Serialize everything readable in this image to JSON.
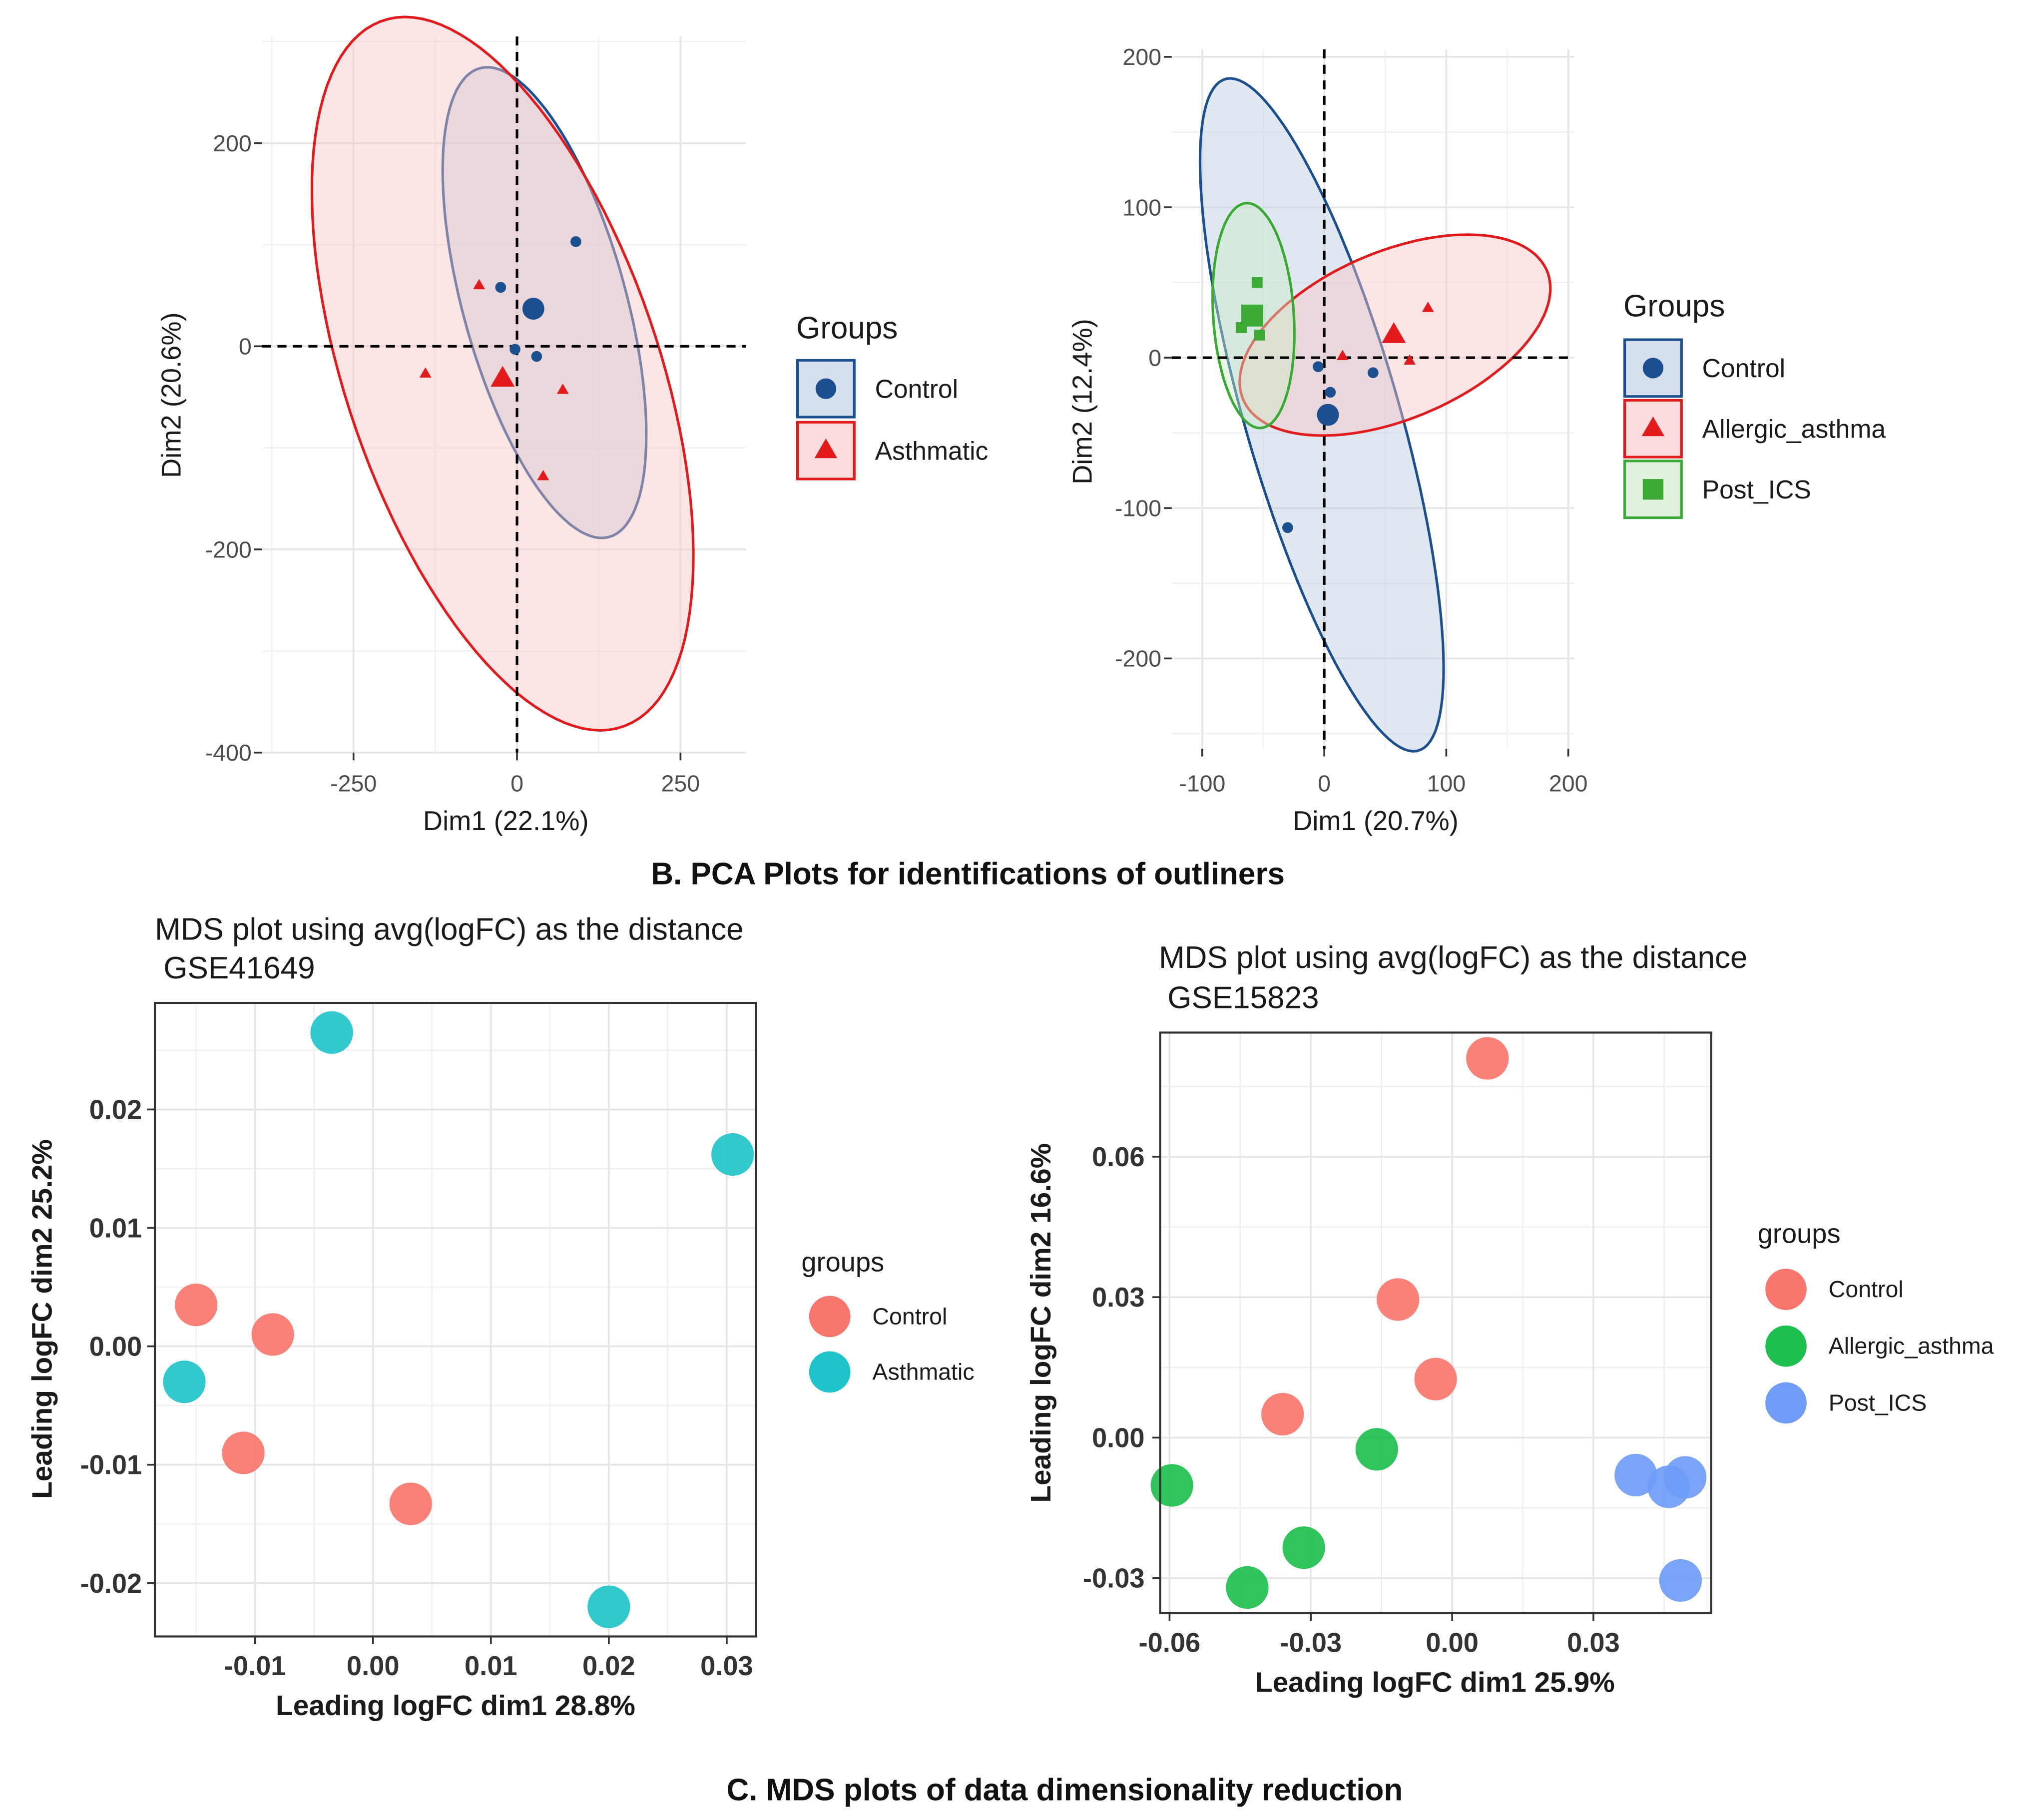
{
  "section_b_caption": "B. PCA Plots for identifications of outliners",
  "section_c_caption": "C. MDS plots of data dimensionality reduction",
  "colors": {
    "control_pca": "#1B4F8F",
    "asthma_pca": "#E31A1C",
    "post_ics_pca": "#3BAA35",
    "control_mds": "#F8766D",
    "asthmatic_mds": "#1FC3CA",
    "allergic_mds": "#1DBF4E",
    "post_ics_mds": "#6E9CF7",
    "grid": "#E6E6E6",
    "panel_border": "#333333"
  },
  "chart_data": [
    {
      "id": "pca1",
      "type": "scatter",
      "title": "",
      "xlabel": "Dim1 (22.1%)",
      "ylabel": "Dim2 (20.6%)",
      "xlim": [
        -390,
        350
      ],
      "ylim": [
        -400,
        305
      ],
      "xticks": [
        -250,
        0,
        250
      ],
      "yticks": [
        -400,
        -200,
        0,
        200
      ],
      "xtick_labels": [
        "-250",
        "0",
        "250"
      ],
      "ytick_labels": [
        "-400",
        "-200",
        "0",
        "200"
      ],
      "grid": true,
      "reference_lines": {
        "x": 0,
        "y": 0
      },
      "legend": {
        "title": "Groups",
        "position": "right",
        "entries": [
          "Control",
          "Asthmatic"
        ]
      },
      "series": [
        {
          "name": "Control",
          "shape": "circle",
          "color_key": "control_pca",
          "points": [
            [
              90,
              103
            ],
            [
              -25,
              58
            ],
            [
              -3,
              -3
            ],
            [
              30,
              -10
            ]
          ],
          "centroid": [
            25,
            37
          ],
          "ellipse": {
            "center": [
              42,
              43
            ],
            "rx": 253,
            "ry": 118,
            "angle": -63
          }
        },
        {
          "name": "Asthmatic",
          "shape": "triangle",
          "color_key": "asthma_pca",
          "points": [
            [
              -58,
              60
            ],
            [
              -140,
              -27
            ],
            [
              70,
              -43
            ],
            [
              40,
              -128
            ]
          ],
          "centroid": [
            -22,
            -32
          ],
          "ellipse": {
            "center": [
              -22,
              -27
            ],
            "rx": 400,
            "ry": 220,
            "angle": -55
          }
        }
      ]
    },
    {
      "id": "pca2",
      "type": "scatter",
      "title": "",
      "xlabel": "Dim1 (20.7%)",
      "ylabel": "Dim2 (12.4%)",
      "xlim": [
        -125,
        205
      ],
      "ylim": [
        -260,
        205
      ],
      "xticks": [
        -100,
        0,
        100,
        200
      ],
      "yticks": [
        -200,
        -100,
        0,
        100,
        200
      ],
      "xtick_labels": [
        "-100",
        "0",
        "100",
        "200"
      ],
      "ytick_labels": [
        "-200",
        "-100",
        "0",
        "100",
        "200"
      ],
      "grid": true,
      "reference_lines": {
        "x": 0,
        "y": 0
      },
      "legend": {
        "title": "Groups",
        "position": "right",
        "entries": [
          "Control",
          "Allergic_asthma",
          "Post_ICS"
        ]
      },
      "series": [
        {
          "name": "Control",
          "shape": "circle",
          "color_key": "control_pca",
          "points": [
            [
              -5,
              -6
            ],
            [
              5,
              -23
            ],
            [
              40,
              -10
            ],
            [
              -30,
              -113
            ]
          ],
          "centroid": [
            3,
            -38
          ],
          "ellipse": {
            "center": [
              -2,
              -38
            ],
            "rx": 237,
            "ry": 62,
            "angle": -70
          }
        },
        {
          "name": "Allergic_asthma",
          "shape": "triangle",
          "color_key": "asthma_pca",
          "points": [
            [
              15,
              1
            ],
            [
              70,
              -2
            ],
            [
              85,
              33
            ]
          ],
          "centroid": [
            57,
            15
          ],
          "ellipse": {
            "center": [
              58,
              15
            ],
            "rx": 132,
            "ry": 57,
            "angle": 17
          }
        },
        {
          "name": "Post_ICS",
          "shape": "square",
          "color_key": "post_ics_pca",
          "points": [
            [
              -55,
              50
            ],
            [
              -68,
              20
            ],
            [
              -53,
              15
            ]
          ],
          "centroid": [
            -59,
            28
          ],
          "ellipse": {
            "center": [
              -58,
              28
            ],
            "rx": 75,
            "ry": 33,
            "angle": -85
          }
        }
      ]
    },
    {
      "id": "mds1",
      "type": "scatter",
      "title": "MDS plot using avg(logFC) as the distance\n GSE41649",
      "xlabel": "Leading logFC dim1 28.8%",
      "ylabel": "Leading logFC dim2 25.2%",
      "xlim": [
        -0.0185,
        0.0325
      ],
      "ylim": [
        -0.0245,
        0.029
      ],
      "xticks": [
        -0.01,
        0.0,
        0.01,
        0.02,
        0.03
      ],
      "yticks": [
        -0.02,
        -0.01,
        0.0,
        0.01,
        0.02
      ],
      "xtick_labels": [
        "-0.01",
        "0.00",
        "0.01",
        "0.02",
        "0.03"
      ],
      "ytick_labels": [
        "-0.02",
        "-0.01",
        "0.00",
        "0.01",
        "0.02"
      ],
      "grid": true,
      "legend": {
        "title": "groups",
        "position": "right",
        "entries": [
          "Control",
          "Asthmatic"
        ]
      },
      "series": [
        {
          "name": "Control",
          "color_key": "control_mds",
          "points": [
            [
              -0.015,
              0.0035
            ],
            [
              -0.0085,
              0.001
            ],
            [
              -0.011,
              -0.009
            ],
            [
              0.0032,
              -0.0133
            ]
          ]
        },
        {
          "name": "Asthmatic",
          "color_key": "asthmatic_mds",
          "points": [
            [
              -0.0035,
              0.0265
            ],
            [
              0.0305,
              0.0162
            ],
            [
              -0.016,
              -0.003
            ],
            [
              0.02,
              -0.022
            ]
          ]
        }
      ]
    },
    {
      "id": "mds2",
      "type": "scatter",
      "title": "MDS plot using avg(logFC) as the distance\n GSE15823",
      "xlabel": "Leading logFC dim1 25.9%",
      "ylabel": "Leading logFC dim2 16.6%",
      "xlim": [
        -0.062,
        0.055
      ],
      "ylim": [
        -0.0375,
        0.0865
      ],
      "xticks": [
        -0.06,
        -0.03,
        0.0,
        0.03
      ],
      "yticks": [
        -0.03,
        0.0,
        0.03,
        0.06
      ],
      "xtick_labels": [
        "-0.06",
        "-0.03",
        "0.00",
        "0.03"
      ],
      "ytick_labels": [
        "-0.03",
        "0.00",
        "0.03",
        "0.06"
      ],
      "grid": true,
      "legend": {
        "title": "groups",
        "position": "right",
        "entries": [
          "Control",
          "Allergic_asthma",
          "Post_ICS"
        ]
      },
      "series": [
        {
          "name": "Control",
          "color_key": "control_mds",
          "points": [
            [
              0.0075,
              0.081
            ],
            [
              -0.0115,
              0.0295
            ],
            [
              -0.0035,
              0.0125
            ],
            [
              -0.036,
              0.005
            ]
          ]
        },
        {
          "name": "Allergic_asthma",
          "color_key": "allergic_mds",
          "points": [
            [
              -0.016,
              -0.0025
            ],
            [
              -0.0595,
              -0.0102
            ],
            [
              -0.0315,
              -0.0235
            ],
            [
              -0.0435,
              -0.032
            ]
          ]
        },
        {
          "name": "Post_ICS",
          "color_key": "post_ics_mds",
          "points": [
            [
              0.039,
              -0.008
            ],
            [
              0.046,
              -0.0105
            ],
            [
              0.0495,
              -0.0085
            ],
            [
              0.0485,
              -0.0305
            ]
          ]
        }
      ]
    }
  ]
}
